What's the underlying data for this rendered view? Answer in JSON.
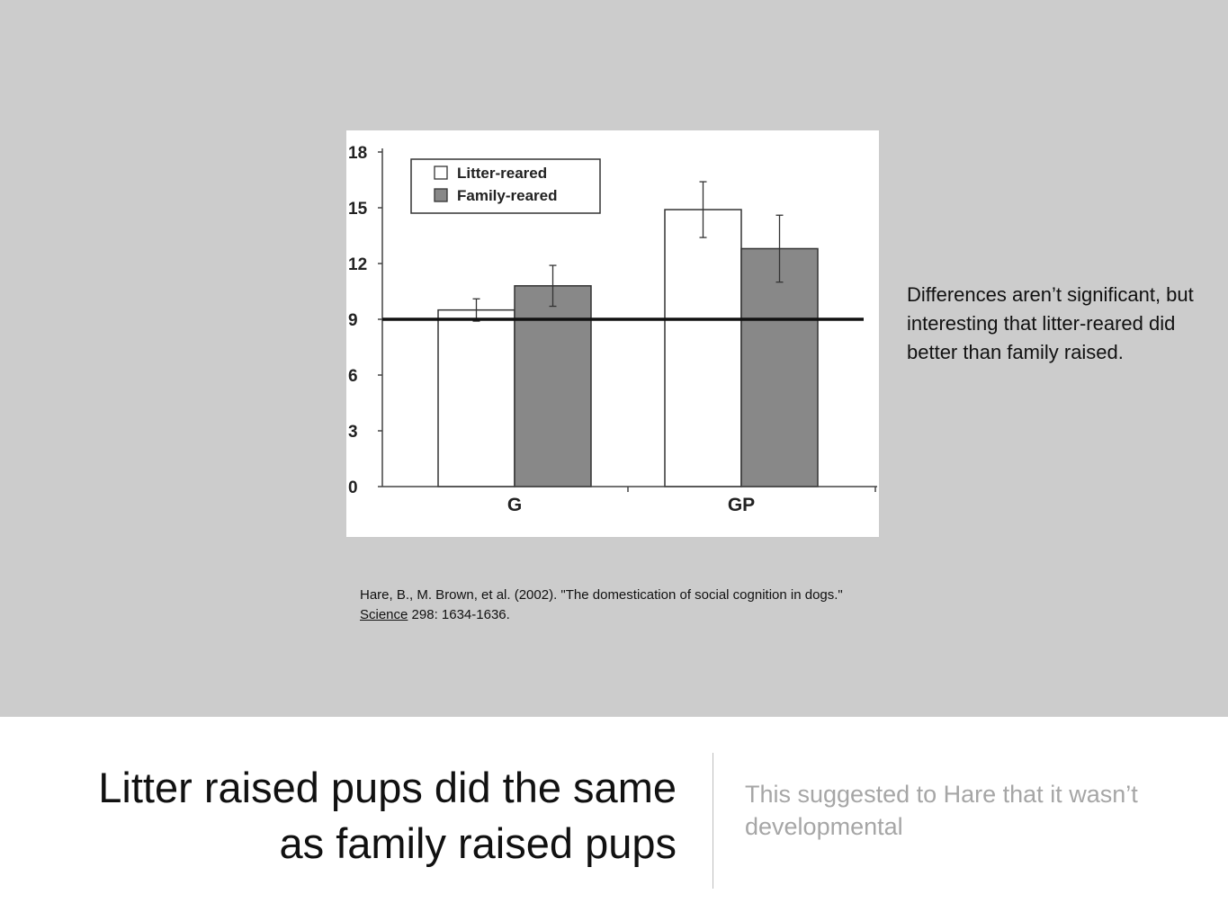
{
  "chart_data": {
    "type": "bar",
    "categories": [
      "G",
      "GP"
    ],
    "series": [
      {
        "name": "Litter-reared",
        "color": "#ffffff",
        "values": [
          9.5,
          14.9
        ],
        "errors": [
          0.6,
          1.5
        ]
      },
      {
        "name": "Family-reared",
        "color": "#888888",
        "values": [
          10.8,
          12.8
        ],
        "errors": [
          1.1,
          1.8
        ]
      }
    ],
    "ylim": [
      0,
      18
    ],
    "yticks": [
      0,
      3,
      6,
      9,
      12,
      15,
      18
    ],
    "reference_line": 9,
    "legend": "top-left",
    "xlabel": "",
    "ylabel": ""
  },
  "note": "Differences aren’t significant, but interesting that litter-reared did better than family raised.",
  "citation": {
    "before": "Hare, B., M. Brown, et al. (2002). \"The domestication of social cognition in dogs.\" ",
    "journal": "Science",
    "after": " 298: 1634-1636."
  },
  "title": "Litter raised pups did the same as family raised pups",
  "subtitle": "This suggested to Hare that it wasn’t developmental"
}
